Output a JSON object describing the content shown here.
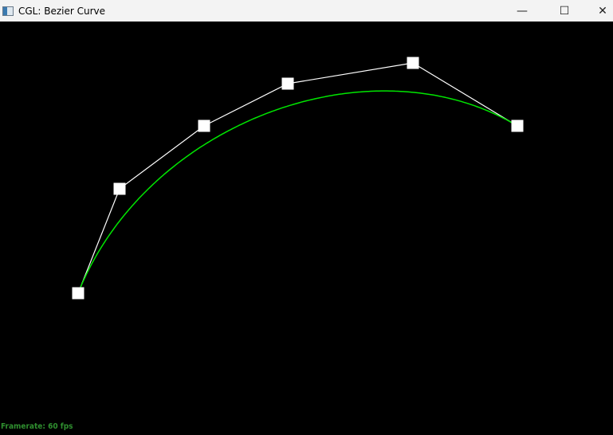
{
  "window": {
    "title": "CGL: Bezier Curve",
    "controls": {
      "minimize": "—",
      "maximize": "☐",
      "close": "✕"
    }
  },
  "scene": {
    "curve_color": "#00e600",
    "polygon_color": "#ffffff",
    "control_point_color": "#ffffff",
    "background": "#000000",
    "control_point_count": 6
  },
  "status": {
    "framerate": "Framerate: 60 fps",
    "color": "#2f8f2f"
  }
}
